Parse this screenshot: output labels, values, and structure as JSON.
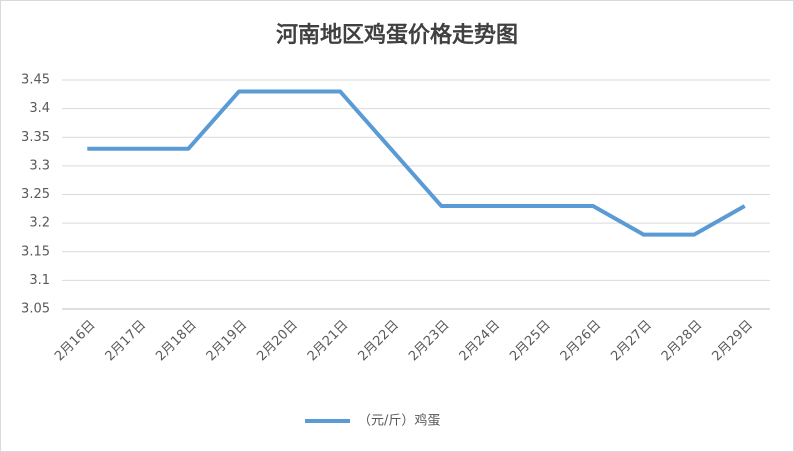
{
  "chart_data": {
    "type": "line",
    "title": "河南地区鸡蛋价格走势图",
    "categories": [
      "2月16日",
      "2月17日",
      "2月18日",
      "2月19日",
      "2月20日",
      "2月21日",
      "2月22日",
      "2月23日",
      "2月24日",
      "2月25日",
      "2月26日",
      "2月27日",
      "2月28日",
      "2月29日"
    ],
    "series": [
      {
        "name": "（元/斤）鸡蛋",
        "color": "#5b9bd5",
        "values": [
          3.33,
          3.33,
          3.33,
          3.43,
          3.43,
          3.43,
          3.33,
          3.23,
          3.23,
          3.23,
          3.23,
          3.18,
          3.18,
          3.23
        ]
      }
    ],
    "ylim": [
      3.05,
      3.45
    ],
    "yticks": [
      3.05,
      3.1,
      3.15,
      3.2,
      3.25,
      3.3,
      3.35,
      3.4,
      3.45
    ],
    "grid": true,
    "legend": "bottom"
  }
}
